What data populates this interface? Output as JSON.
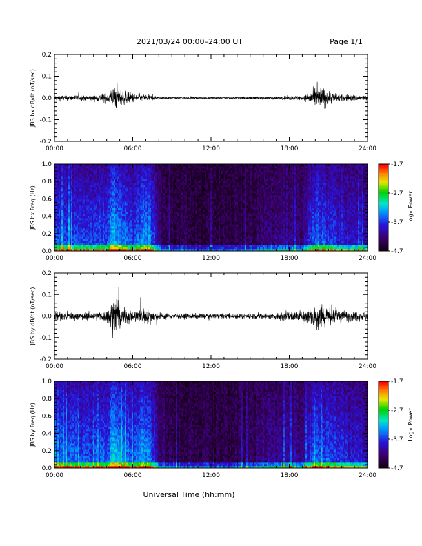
{
  "header": {
    "title": "2021/03/24  00:00–24:00 UT",
    "page": "Page 1/1"
  },
  "x_title": "Universal Time (hh:mm)",
  "chart_data": [
    {
      "type": "line",
      "ylabel": "JBS bx dB/dt (nT/sec)",
      "x_ticks": [
        "00:00",
        "06:00",
        "12:00",
        "18:00",
        "24:00"
      ],
      "xlim": [
        0,
        24
      ],
      "ylim": [
        -0.2,
        0.2
      ],
      "y_ticks": [
        "-0.2",
        "-0.1",
        "0.0",
        "0.1",
        "0.2"
      ],
      "color": "#000000",
      "envelope": {
        "hours": [
          0,
          1,
          2,
          3,
          4,
          4.5,
          4.8,
          5.2,
          6,
          7,
          8,
          9,
          10,
          12,
          14,
          16,
          18,
          19,
          20,
          20.5,
          21,
          22,
          23,
          24
        ],
        "amplitude": [
          0.03,
          0.028,
          0.028,
          0.03,
          0.05,
          0.11,
          0.12,
          0.07,
          0.05,
          0.035,
          0.015,
          0.008,
          0.008,
          0.008,
          0.01,
          0.012,
          0.02,
          0.025,
          0.09,
          0.12,
          0.07,
          0.04,
          0.03,
          0.03
        ]
      }
    },
    {
      "type": "heatmap",
      "ylabel": "JBS bx Freq (Hz)",
      "x_ticks": [
        "00:00",
        "06:00",
        "12:00",
        "18:00",
        "24:00"
      ],
      "xlim": [
        0,
        24
      ],
      "ylim": [
        0,
        1
      ],
      "y_ticks": [
        "0.0",
        "0.2",
        "0.4",
        "0.6",
        "0.8",
        "1.0"
      ],
      "colorbar": {
        "label": "Log₁₀ Power",
        "range": [
          -4.7,
          -1.7
        ],
        "ticks": [
          "-1.7",
          "-2.7",
          "-3.7",
          "-4.7"
        ]
      },
      "activity": {
        "hours": [
          0,
          1,
          2,
          3,
          4,
          4.5,
          5,
          6,
          7,
          7.5,
          8,
          9,
          10,
          12,
          14,
          15,
          16,
          17,
          18,
          19,
          20,
          21,
          22,
          23,
          24
        ],
        "level": [
          0.6,
          0.58,
          0.55,
          0.55,
          0.6,
          0.85,
          0.7,
          0.55,
          0.75,
          0.6,
          0.2,
          0.08,
          0.06,
          0.05,
          0.06,
          0.08,
          0.18,
          0.2,
          0.25,
          0.2,
          0.65,
          0.5,
          0.45,
          0.4,
          0.38
        ]
      }
    },
    {
      "type": "line",
      "ylabel": "JBS by dB/dt (nT/sec)",
      "x_ticks": [
        "00:00",
        "06:00",
        "12:00",
        "18:00",
        "24:00"
      ],
      "xlim": [
        0,
        24
      ],
      "ylim": [
        -0.2,
        0.2
      ],
      "y_ticks": [
        "-0.2",
        "-0.1",
        "0.0",
        "0.1",
        "0.2"
      ],
      "color": "#000000",
      "envelope": {
        "hours": [
          0,
          1,
          2,
          3,
          4,
          4.5,
          4.8,
          5.2,
          6,
          7,
          8,
          9,
          10,
          12,
          14,
          16,
          18,
          19,
          20,
          20.5,
          21,
          22,
          23,
          24
        ],
        "amplitude": [
          0.04,
          0.04,
          0.04,
          0.04,
          0.06,
          0.2,
          0.2,
          0.1,
          0.06,
          0.08,
          0.04,
          0.025,
          0.025,
          0.025,
          0.025,
          0.03,
          0.05,
          0.06,
          0.12,
          0.15,
          0.1,
          0.06,
          0.05,
          0.05
        ]
      }
    },
    {
      "type": "heatmap",
      "ylabel": "JBS by Freq (Hz)",
      "x_ticks": [
        "00:00",
        "06:00",
        "12:00",
        "18:00",
        "24:00"
      ],
      "xlim": [
        0,
        24
      ],
      "ylim": [
        0,
        1
      ],
      "y_ticks": [
        "0.0",
        "0.2",
        "0.4",
        "0.6",
        "0.8",
        "1.0"
      ],
      "colorbar": {
        "label": "Log₁₀ Power",
        "range": [
          -4.7,
          -1.7
        ],
        "ticks": [
          "-1.7",
          "-2.7",
          "-3.7",
          "-4.7"
        ]
      },
      "activity": {
        "hours": [
          0,
          1,
          2,
          3,
          4,
          4.5,
          5,
          6,
          7,
          7.5,
          8,
          9,
          10,
          12,
          14,
          15,
          16,
          17,
          18,
          19,
          20,
          21,
          22,
          23,
          24
        ],
        "level": [
          0.65,
          0.6,
          0.58,
          0.58,
          0.62,
          0.85,
          0.72,
          0.6,
          0.75,
          0.62,
          0.22,
          0.1,
          0.08,
          0.07,
          0.08,
          0.12,
          0.25,
          0.3,
          0.3,
          0.28,
          0.65,
          0.55,
          0.5,
          0.45,
          0.42
        ]
      }
    }
  ]
}
